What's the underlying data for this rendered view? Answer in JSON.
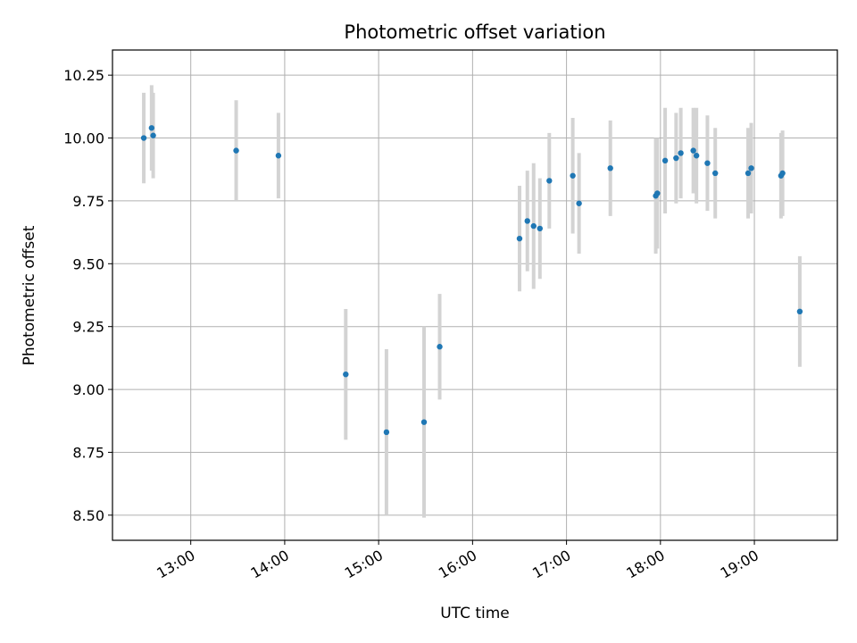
{
  "chart_data": {
    "type": "scatter",
    "title": "Photometric offset variation",
    "xlabel": "UTC time",
    "ylabel": "Photometric offset",
    "x_axis_kind": "time",
    "xlim": [
      "12:10",
      "19:53"
    ],
    "ylim": [
      8.4,
      10.35
    ],
    "x_ticks": [
      "13:00",
      "14:00",
      "15:00",
      "16:00",
      "17:00",
      "18:00",
      "19:00"
    ],
    "y_ticks": [
      8.5,
      8.75,
      9.0,
      9.25,
      9.5,
      9.75,
      10.0,
      10.25
    ],
    "y_tick_labels": [
      "8.50",
      "8.75",
      "9.00",
      "9.25",
      "9.50",
      "9.75",
      "10.00",
      "10.25"
    ],
    "x_tick_rotation_deg": 30,
    "grid": true,
    "colors": {
      "point": "#1f77b4",
      "errorbar": "#d3d3d3",
      "grid": "#b0b0b0"
    },
    "points": [
      {
        "x": "12:30",
        "y": 10.0,
        "yerr": 0.18
      },
      {
        "x": "12:35",
        "y": 10.04,
        "yerr": 0.17
      },
      {
        "x": "12:36",
        "y": 10.01,
        "yerr": 0.17
      },
      {
        "x": "13:29",
        "y": 9.95,
        "yerr": 0.2
      },
      {
        "x": "13:56",
        "y": 9.93,
        "yerr": 0.17
      },
      {
        "x": "14:39",
        "y": 9.06,
        "yerr": 0.26
      },
      {
        "x": "15:05",
        "y": 8.83,
        "yerr": 0.33
      },
      {
        "x": "15:29",
        "y": 8.87,
        "yerr": 0.38
      },
      {
        "x": "15:39",
        "y": 9.17,
        "yerr": 0.21
      },
      {
        "x": "16:30",
        "y": 9.6,
        "yerr": 0.21
      },
      {
        "x": "16:35",
        "y": 9.67,
        "yerr": 0.2
      },
      {
        "x": "16:39",
        "y": 9.65,
        "yerr": 0.25
      },
      {
        "x": "16:43",
        "y": 9.64,
        "yerr": 0.2
      },
      {
        "x": "16:49",
        "y": 9.83,
        "yerr": 0.19
      },
      {
        "x": "17:04",
        "y": 9.85,
        "yerr": 0.23
      },
      {
        "x": "17:08",
        "y": 9.74,
        "yerr": 0.2
      },
      {
        "x": "17:28",
        "y": 9.88,
        "yerr": 0.19
      },
      {
        "x": "17:57",
        "y": 9.77,
        "yerr": 0.23
      },
      {
        "x": "17:58",
        "y": 9.78,
        "yerr": 0.22
      },
      {
        "x": "18:03",
        "y": 9.91,
        "yerr": 0.21
      },
      {
        "x": "18:10",
        "y": 9.92,
        "yerr": 0.18
      },
      {
        "x": "18:13",
        "y": 9.94,
        "yerr": 0.18
      },
      {
        "x": "18:21",
        "y": 9.95,
        "yerr": 0.17
      },
      {
        "x": "18:23",
        "y": 9.93,
        "yerr": 0.19
      },
      {
        "x": "18:30",
        "y": 9.9,
        "yerr": 0.19
      },
      {
        "x": "18:35",
        "y": 9.86,
        "yerr": 0.18
      },
      {
        "x": "18:56",
        "y": 9.86,
        "yerr": 0.18
      },
      {
        "x": "18:58",
        "y": 9.88,
        "yerr": 0.18
      },
      {
        "x": "19:17",
        "y": 9.85,
        "yerr": 0.17
      },
      {
        "x": "19:18",
        "y": 9.86,
        "yerr": 0.17
      },
      {
        "x": "19:29",
        "y": 9.31,
        "yerr": 0.22
      }
    ]
  }
}
